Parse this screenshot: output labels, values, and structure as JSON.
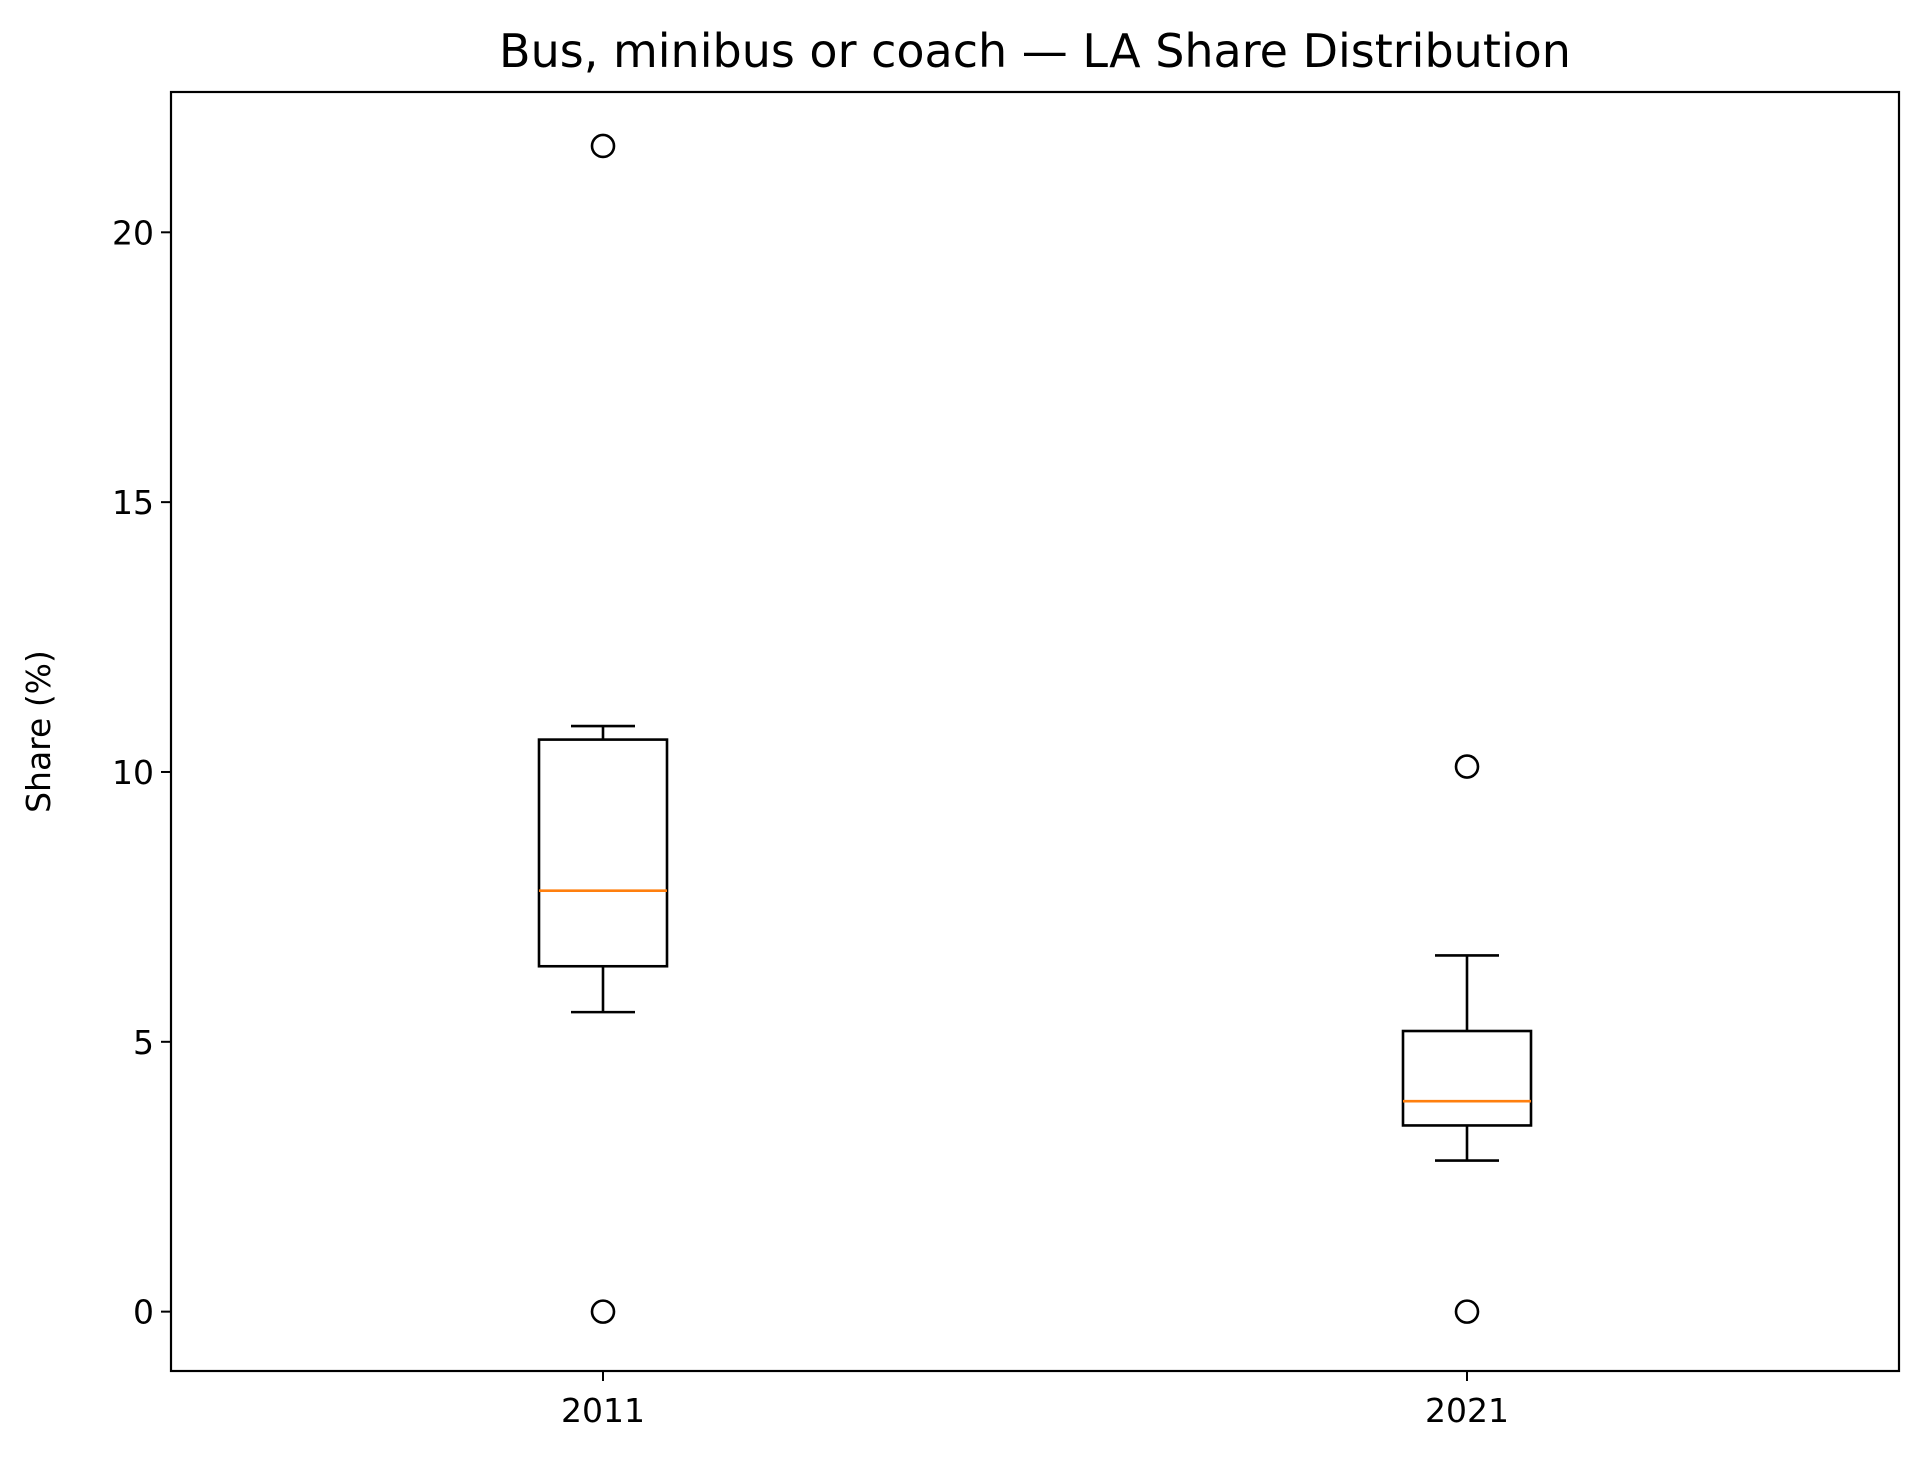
{
  "chart_data": {
    "type": "box",
    "title": "Bus, minibus or coach — LA Share Distribution",
    "xlabel": "",
    "ylabel": "Share (%)",
    "ylim": [
      -1.1,
      22.6
    ],
    "yticks": [
      0,
      5,
      10,
      15,
      20
    ],
    "categories": [
      "2011",
      "2021"
    ],
    "boxes": [
      {
        "category": "2011",
        "whisker_low": 5.55,
        "q1": 6.4,
        "median": 7.8,
        "q3": 10.6,
        "whisker_high": 10.85,
        "outliers": [
          21.6,
          0.0
        ]
      },
      {
        "category": "2021",
        "whisker_low": 2.8,
        "q1": 3.45,
        "median": 3.9,
        "q3": 5.2,
        "whisker_high": 6.6,
        "outliers": [
          10.1,
          0.0
        ]
      }
    ],
    "grid": false,
    "colors": {
      "box": "#000000",
      "median": "#ff7f0e",
      "outlier": "#000000"
    }
  }
}
